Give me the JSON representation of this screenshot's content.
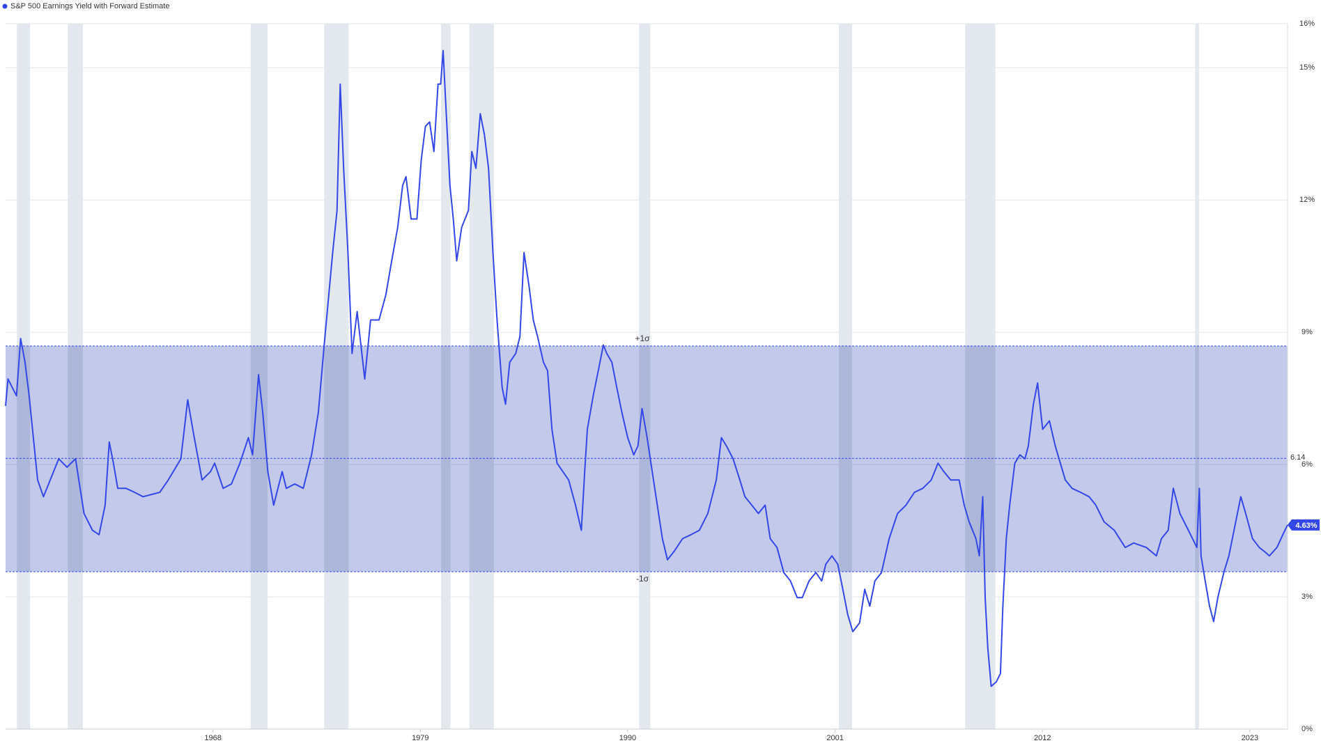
{
  "chart_data": {
    "type": "line",
    "series": [
      {
        "name": "S&P 500 Earnings Yield with Forward Estimate",
        "color": "#3347e8",
        "x": [
          1957.0,
          1957.13,
          1957.58,
          1957.8,
          1958.03,
          1958.25,
          1958.7,
          1959.01,
          1959.37,
          1959.82,
          1960.26,
          1960.71,
          1961.16,
          1961.61,
          1961.96,
          1962.28,
          1962.5,
          1962.72,
          1962.95,
          1963.39,
          1963.84,
          1964.29,
          1965.18,
          1965.63,
          1966.3,
          1966.66,
          1966.97,
          1967.42,
          1967.87,
          1968.09,
          1968.54,
          1968.98,
          1969.43,
          1969.88,
          1970.1,
          1970.42,
          1970.64,
          1970.91,
          1971.22,
          1971.67,
          1971.89,
          1972.34,
          1972.79,
          1973.23,
          1973.59,
          1973.9,
          1974.35,
          1974.58,
          1974.75,
          1974.93,
          1975.16,
          1975.38,
          1975.65,
          1976.05,
          1976.36,
          1976.81,
          1977.17,
          1977.48,
          1977.8,
          1978.06,
          1978.24,
          1978.51,
          1978.82,
          1979.05,
          1979.27,
          1979.49,
          1979.72,
          1979.94,
          1980.08,
          1980.21,
          1980.34,
          1980.57,
          1980.75,
          1980.93,
          1981.19,
          1981.55,
          1981.73,
          1981.95,
          1982.18,
          1982.4,
          1982.62,
          1982.85,
          1983.07,
          1983.34,
          1983.52,
          1983.74,
          1984.06,
          1984.28,
          1984.5,
          1984.77,
          1984.99,
          1985.22,
          1985.53,
          1985.75,
          1985.98,
          1986.25,
          1986.56,
          1986.87,
          1987.23,
          1987.54,
          1987.72,
          1987.86,
          1988.17,
          1988.44,
          1988.71,
          1988.89,
          1989.16,
          1989.42,
          1989.69,
          1990.0,
          1990.32,
          1990.54,
          1990.76,
          1991.03,
          1991.3,
          1991.57,
          1991.84,
          1992.11,
          1992.46,
          1992.91,
          1993.36,
          1993.8,
          1994.25,
          1994.7,
          1994.97,
          1995.24,
          1995.59,
          1995.95,
          1996.22,
          1996.58,
          1996.93,
          1997.29,
          1997.56,
          1997.92,
          1998.28,
          1998.63,
          1998.99,
          1999.26,
          1999.62,
          1999.98,
          2000.29,
          2000.51,
          2000.83,
          2001.14,
          2001.41,
          2001.67,
          2001.94,
          2002.3,
          2002.57,
          2002.84,
          2003.11,
          2003.46,
          2003.87,
          2004.31,
          2004.76,
          2005.21,
          2005.65,
          2006.1,
          2006.46,
          2006.77,
          2007.13,
          2007.58,
          2007.85,
          2008.11,
          2008.47,
          2008.65,
          2008.83,
          2008.96,
          2009.1,
          2009.28,
          2009.55,
          2009.77,
          2009.9,
          2010.08,
          2010.26,
          2010.53,
          2010.8,
          2011.07,
          2011.25,
          2011.52,
          2011.74,
          2012.01,
          2012.37,
          2012.68,
          2012.95,
          2013.21,
          2013.57,
          2014.02,
          2014.47,
          2014.83,
          2015.27,
          2015.81,
          2016.39,
          2016.84,
          2017.51,
          2018.04,
          2018.31,
          2018.67,
          2018.94,
          2019.29,
          2019.74,
          2020.19,
          2020.32,
          2020.41,
          2020.63,
          2020.86,
          2021.08,
          2021.3,
          2021.62,
          2021.89,
          2022.25,
          2022.52,
          2022.78,
          2023.14,
          2023.5,
          2023.77,
          2024.04,
          2024.44,
          2024.75,
          2025.0
        ],
        "values": [
          7.33,
          7.94,
          7.56,
          8.86,
          8.32,
          7.56,
          5.65,
          5.27,
          5.65,
          6.13,
          5.94,
          6.13,
          4.89,
          4.51,
          4.41,
          5.08,
          6.51,
          6.03,
          5.46,
          5.46,
          5.37,
          5.27,
          5.37,
          5.65,
          6.13,
          7.47,
          6.7,
          5.65,
          5.84,
          6.03,
          5.46,
          5.56,
          6.03,
          6.61,
          6.22,
          8.04,
          7.18,
          5.84,
          5.08,
          5.84,
          5.46,
          5.56,
          5.46,
          6.22,
          7.18,
          8.71,
          10.81,
          11.76,
          14.63,
          12.72,
          10.81,
          8.52,
          9.47,
          7.94,
          9.28,
          9.28,
          9.85,
          10.62,
          11.38,
          12.33,
          12.53,
          11.57,
          11.57,
          12.91,
          13.67,
          13.77,
          13.1,
          14.63,
          14.63,
          15.39,
          14.24,
          12.33,
          11.57,
          10.62,
          11.38,
          11.76,
          13.1,
          12.72,
          13.96,
          13.48,
          12.72,
          10.81,
          9.28,
          7.75,
          7.37,
          8.32,
          8.52,
          8.9,
          10.81,
          10.04,
          9.28,
          8.9,
          8.32,
          8.13,
          6.8,
          6.03,
          5.84,
          5.65,
          5.08,
          4.51,
          5.84,
          6.8,
          7.56,
          8.13,
          8.71,
          8.52,
          8.32,
          7.75,
          7.18,
          6.61,
          6.22,
          6.42,
          7.27,
          6.61,
          5.84,
          5.08,
          4.32,
          3.84,
          4.03,
          4.32,
          4.41,
          4.51,
          4.89,
          5.65,
          6.61,
          6.42,
          6.13,
          5.65,
          5.27,
          5.08,
          4.89,
          5.08,
          4.32,
          4.12,
          3.55,
          3.36,
          2.98,
          2.98,
          3.36,
          3.55,
          3.36,
          3.74,
          3.93,
          3.74,
          3.17,
          2.6,
          2.21,
          2.41,
          3.17,
          2.79,
          3.36,
          3.55,
          4.32,
          4.89,
          5.08,
          5.37,
          5.46,
          5.65,
          6.03,
          5.84,
          5.65,
          5.65,
          5.08,
          4.7,
          4.32,
          3.93,
          5.27,
          2.98,
          1.83,
          0.97,
          1.07,
          1.26,
          2.79,
          4.32,
          5.08,
          6.03,
          6.22,
          6.13,
          6.42,
          7.37,
          7.85,
          6.8,
          6.99,
          6.42,
          6.03,
          5.65,
          5.46,
          5.37,
          5.27,
          5.08,
          4.7,
          4.51,
          4.12,
          4.22,
          4.12,
          3.93,
          4.32,
          4.51,
          5.46,
          4.89,
          4.51,
          4.12,
          5.46,
          3.93,
          3.36,
          2.79,
          2.44,
          2.98,
          3.55,
          3.93,
          4.7,
          5.27,
          4.89,
          4.32,
          4.12,
          4.03,
          3.93,
          4.12,
          4.41,
          4.63
        ]
      }
    ],
    "end_label": "4.63%",
    "recessions": [
      [
        1957.6,
        1958.3
      ],
      [
        1960.3,
        1961.1
      ],
      [
        1970.0,
        1970.9
      ],
      [
        1973.9,
        1975.2
      ],
      [
        1980.1,
        1980.6
      ],
      [
        1981.6,
        1982.9
      ],
      [
        1990.6,
        1991.2
      ],
      [
        2001.2,
        2001.9
      ],
      [
        2007.9,
        2009.5
      ],
      [
        2020.1,
        2020.3
      ]
    ],
    "bands": {
      "mean": 6.14,
      "upper": 8.69,
      "lower": 3.57,
      "upper_label": "+1σ",
      "lower_label": "-1σ",
      "band_color": "#b8bfe6"
    },
    "xlim": [
      1957,
      2025
    ],
    "xticks": [
      1968,
      1979,
      1990,
      2001,
      2012,
      2023
    ],
    "ylim": [
      0,
      16
    ],
    "yticks": [
      {
        "value": 0,
        "label": "0%"
      },
      {
        "value": 3,
        "label": "3%"
      },
      {
        "value": 6,
        "label": "6%"
      },
      {
        "value": 9,
        "label": "9%"
      },
      {
        "value": 12,
        "label": "12%"
      },
      {
        "value": 15,
        "label": "15%"
      },
      {
        "value": 16,
        "label": "16%"
      }
    ],
    "grid": true
  }
}
